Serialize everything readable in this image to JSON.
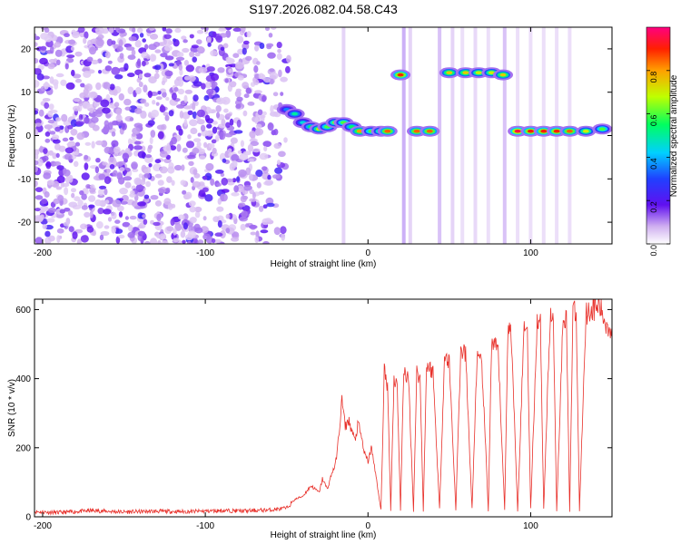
{
  "title": "S197.2026.082.04.58.C43",
  "chart_data": [
    {
      "type": "heatmap",
      "xlabel": "Height of straight line (km)",
      "ylabel": "Frequency (Hz)",
      "xlim": [
        -205,
        150
      ],
      "ylim": [
        -25,
        25
      ],
      "xticks": [
        -200,
        -100,
        0,
        100
      ],
      "yticks": [
        -20,
        -10,
        0,
        10,
        20
      ],
      "colorbar": {
        "label": "Normalized spectral amplitude",
        "range": [
          0,
          1
        ],
        "ticks": [
          0.0,
          0.2,
          0.4,
          0.6,
          0.8
        ],
        "tick_labels": [
          "0.0",
          "0.2",
          "0.4",
          "0.6",
          "0.8"
        ]
      },
      "noise_region": {
        "x": [
          -205,
          -55
        ],
        "y": [
          -25,
          25
        ],
        "level": 0.15
      },
      "features": [
        {
          "x": -50,
          "y": 6,
          "level": 0.35
        },
        {
          "x": -45,
          "y": 5,
          "level": 0.5
        },
        {
          "x": -40,
          "y": 3,
          "level": 0.45
        },
        {
          "x": -35,
          "y": 2,
          "level": 0.55
        },
        {
          "x": -30,
          "y": 1.5,
          "level": 0.7
        },
        {
          "x": -25,
          "y": 2,
          "level": 0.6
        },
        {
          "x": -20,
          "y": 3,
          "level": 0.65
        },
        {
          "x": -15,
          "y": 3,
          "level": 0.6
        },
        {
          "x": -10,
          "y": 2,
          "level": 0.55
        },
        {
          "x": -5,
          "y": 1,
          "level": 0.8
        },
        {
          "x": 2,
          "y": 1,
          "level": 0.6
        },
        {
          "x": 8,
          "y": 1,
          "level": 0.65
        },
        {
          "x": 12,
          "y": 1,
          "level": 0.85
        },
        {
          "x": 20,
          "y": 14,
          "level": 0.9
        },
        {
          "x": 30,
          "y": 1,
          "level": 0.85
        },
        {
          "x": 38,
          "y": 1,
          "level": 0.85
        },
        {
          "x": 50,
          "y": 14.5,
          "level": 0.75
        },
        {
          "x": 60,
          "y": 14.5,
          "level": 0.75
        },
        {
          "x": 68,
          "y": 14.5,
          "level": 0.7
        },
        {
          "x": 76,
          "y": 14.5,
          "level": 0.7
        },
        {
          "x": 83,
          "y": 14,
          "level": 0.75
        },
        {
          "x": 92,
          "y": 1,
          "level": 0.95
        },
        {
          "x": 100,
          "y": 1,
          "level": 0.9
        },
        {
          "x": 108,
          "y": 1,
          "level": 0.9
        },
        {
          "x": 116,
          "y": 1,
          "level": 0.9
        },
        {
          "x": 124,
          "y": 1,
          "level": 0.85
        },
        {
          "x": 134,
          "y": 1,
          "level": 0.7
        },
        {
          "x": 144,
          "y": 1.5,
          "level": 0.6
        }
      ]
    },
    {
      "type": "line",
      "xlabel": "Height of straight line (km)",
      "ylabel": "SNR (10 * v/v)",
      "xlim": [
        -205,
        150
      ],
      "ylim": [
        0,
        630
      ],
      "xticks": [
        -200,
        -100,
        0,
        100
      ],
      "yticks": [
        0,
        200,
        400,
        600
      ],
      "color": "#e8302a",
      "series": [
        {
          "x": [
            -205,
            -190,
            -170,
            -150,
            -130,
            -110,
            -90,
            -75,
            -60,
            -50,
            -45,
            -40,
            -35,
            -30,
            -28,
            -25,
            -22,
            -20,
            -18,
            -16,
            -14,
            -12,
            -10,
            -8,
            -6,
            -4,
            -2,
            0,
            2,
            4,
            6,
            8,
            10,
            12,
            14,
            16,
            18,
            20,
            22,
            25,
            28,
            30,
            32,
            34,
            36,
            40,
            44,
            47,
            50,
            54,
            57,
            60,
            64,
            67,
            70,
            74,
            76,
            80,
            84,
            86,
            88,
            92,
            96,
            98,
            100,
            104,
            106,
            108,
            112,
            114,
            116,
            120,
            122,
            124,
            126,
            128,
            130,
            134,
            138,
            142,
            146,
            150
          ],
          "y": [
            15,
            12,
            18,
            14,
            16,
            15,
            18,
            17,
            20,
            25,
            50,
            60,
            90,
            70,
            110,
            80,
            130,
            150,
            230,
            340,
            260,
            280,
            250,
            220,
            270,
            230,
            180,
            160,
            200,
            150,
            80,
            20,
            420,
            380,
            20,
            400,
            380,
            20,
            430,
            390,
            20,
            420,
            400,
            20,
            440,
            420,
            20,
            460,
            450,
            20,
            480,
            470,
            20,
            460,
            440,
            20,
            500,
            480,
            20,
            540,
            540,
            20,
            560,
            540,
            20,
            570,
            560,
            20,
            580,
            560,
            20,
            590,
            570,
            20,
            600,
            580,
            20,
            590,
            600,
            610,
            560,
            540
          ]
        }
      ]
    }
  ]
}
